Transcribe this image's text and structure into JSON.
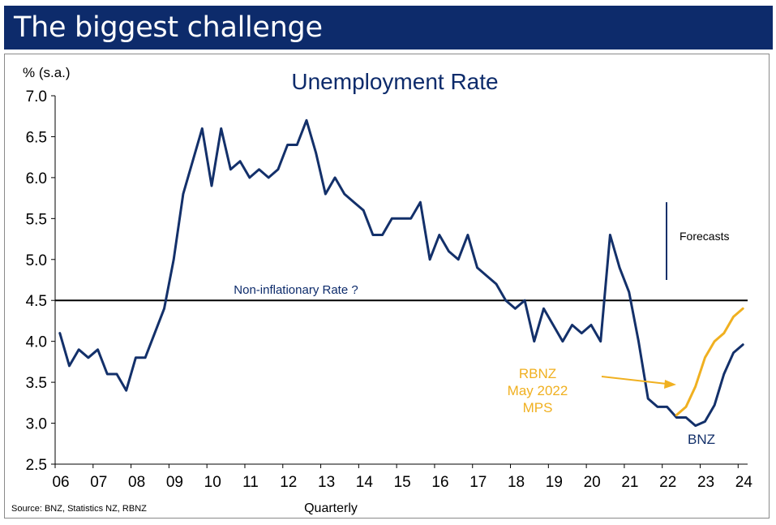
{
  "header": {
    "title": "The biggest challenge"
  },
  "source_note": "Source: BNZ, Statistics NZ, RBNZ",
  "colors": {
    "header_bg": "#0d2b6b",
    "bnz": "#13306a",
    "rbnz": "#f0b020",
    "threshold": "#000000",
    "text": "#0d2b6b"
  },
  "chart_data": {
    "type": "line",
    "title": "Unemployment Rate",
    "ylabel": "% (s.a.)",
    "xlabel": "Quarterly",
    "ylim": [
      2.5,
      7.0
    ],
    "xlim": [
      2006.0,
      2024.25
    ],
    "yticks": [
      2.5,
      3.0,
      3.5,
      4.0,
      4.5,
      5.0,
      5.5,
      6.0,
      6.5,
      7.0
    ],
    "ytick_labels": [
      "2.5",
      "3.0",
      "3.5",
      "4.0",
      "4.5",
      "5.0",
      "5.5",
      "6.0",
      "6.5",
      "7.0"
    ],
    "xtick_labels": [
      "06",
      "07",
      "08",
      "09",
      "10",
      "11",
      "12",
      "13",
      "14",
      "15",
      "16",
      "17",
      "18",
      "19",
      "20",
      "21",
      "22",
      "23",
      "24"
    ],
    "reference_line": {
      "value": 4.5,
      "label": "Non-inflationary Rate ?"
    },
    "forecast_marker": {
      "x": 2022.0,
      "y_range": [
        4.75,
        5.7
      ],
      "label": "Forecasts"
    },
    "series": [
      {
        "name": "BNZ",
        "color": "#13306a",
        "x": [
          2006.125,
          2006.375,
          2006.625,
          2006.875,
          2007.125,
          2007.375,
          2007.625,
          2007.875,
          2008.125,
          2008.375,
          2008.625,
          2008.875,
          2009.125,
          2009.375,
          2009.625,
          2009.875,
          2010.125,
          2010.375,
          2010.625,
          2010.875,
          2011.125,
          2011.375,
          2011.625,
          2011.875,
          2012.125,
          2012.375,
          2012.625,
          2012.875,
          2013.125,
          2013.375,
          2013.625,
          2013.875,
          2014.125,
          2014.375,
          2014.625,
          2014.875,
          2015.125,
          2015.375,
          2015.625,
          2015.875,
          2016.125,
          2016.375,
          2016.625,
          2016.875,
          2017.125,
          2017.375,
          2017.625,
          2017.875,
          2018.125,
          2018.375,
          2018.625,
          2018.875,
          2019.125,
          2019.375,
          2019.625,
          2019.875,
          2020.125,
          2020.375,
          2020.625,
          2020.875,
          2021.125,
          2021.375,
          2021.625,
          2021.875,
          2022.125,
          2022.375,
          2022.625,
          2022.875,
          2023.125,
          2023.375,
          2023.625,
          2023.875,
          2024.125
        ],
        "values": [
          4.1,
          3.7,
          3.9,
          3.8,
          3.9,
          3.6,
          3.6,
          3.4,
          3.8,
          3.8,
          4.1,
          4.4,
          5.0,
          5.8,
          6.2,
          6.6,
          5.9,
          6.6,
          6.1,
          6.2,
          6.0,
          6.1,
          6.0,
          6.1,
          6.4,
          6.4,
          6.7,
          6.3,
          5.8,
          6.0,
          5.8,
          5.7,
          5.6,
          5.3,
          5.3,
          5.5,
          5.5,
          5.5,
          5.7,
          5.0,
          5.3,
          5.1,
          5.0,
          5.3,
          4.9,
          4.8,
          4.7,
          4.5,
          4.4,
          4.5,
          4.0,
          4.4,
          4.2,
          4.0,
          4.2,
          4.1,
          4.2,
          4.0,
          5.3,
          4.9,
          4.6,
          4.0,
          3.3,
          3.2,
          3.2,
          3.07,
          3.07,
          2.97,
          3.02,
          3.22,
          3.6,
          3.86,
          3.96
        ]
      },
      {
        "name": "RBNZ May 2022 MPS",
        "color": "#f0b020",
        "x": [
          2022.375,
          2022.625,
          2022.875,
          2023.125,
          2023.375,
          2023.625,
          2023.875,
          2024.125
        ],
        "values": [
          3.1,
          3.2,
          3.45,
          3.8,
          4.0,
          4.1,
          4.3,
          4.4
        ]
      }
    ],
    "annotations": {
      "rbnz_label": [
        "RBNZ",
        "May 2022",
        "MPS"
      ],
      "bnz_label": "BNZ"
    }
  }
}
